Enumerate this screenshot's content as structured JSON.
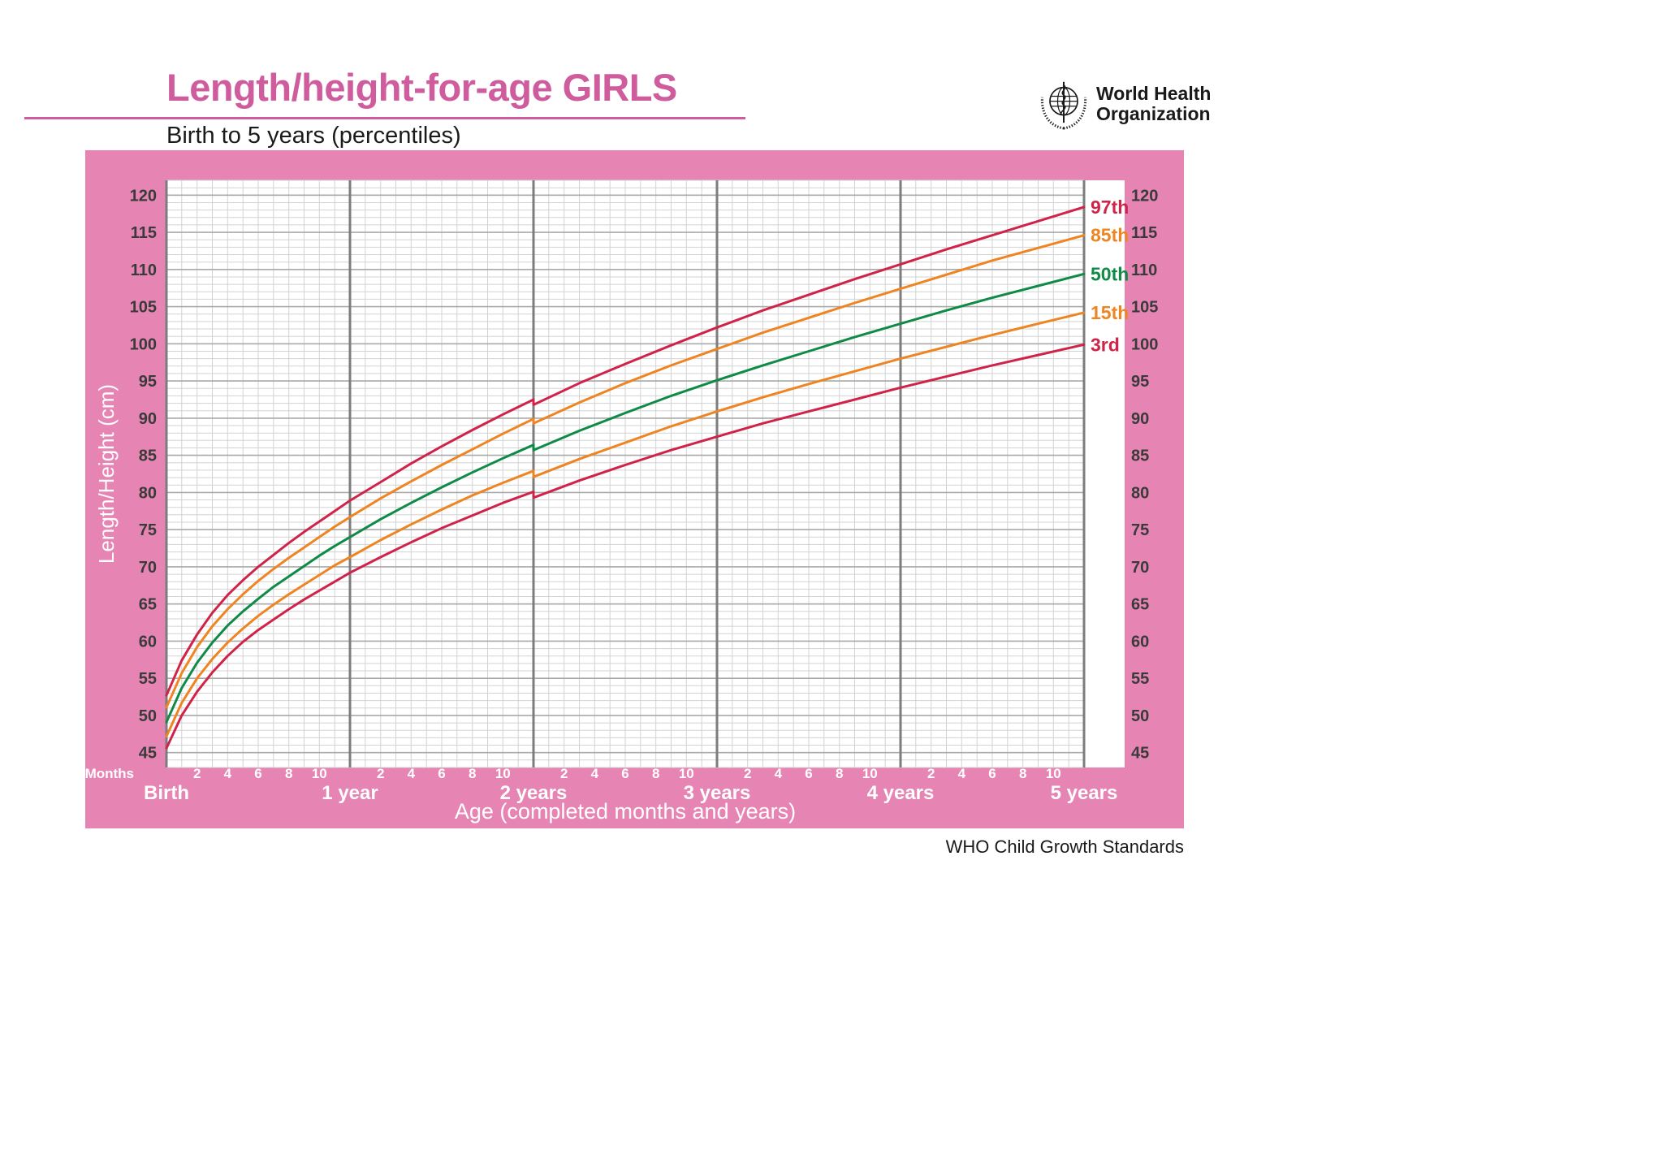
{
  "page": {
    "title": "Length/height-for-age GIRLS",
    "subtitle": "Birth to 5 years (percentiles)",
    "credit": "WHO Child Growth Standards",
    "logo": {
      "line1": "World Health",
      "line2": "Organization"
    }
  },
  "colors": {
    "pink_panel": "#e685b4",
    "title_pink": "#cf5d9e",
    "red": "#d02349",
    "orange": "#ee8522",
    "green": "#0f8a47",
    "grid_minor": "#d3d3d3",
    "grid_major": "#a9a9a9",
    "grid_year": "#7d7d7d",
    "axis_text": "#3a3a3a",
    "white_text": "#ffffff"
  },
  "chart_data": {
    "type": "line",
    "title": "Length/height-for-age GIRLS — Birth to 5 years (percentiles)",
    "xlabel": "Age (completed months and years)",
    "ylabel": "Length/Height (cm)",
    "x_unit_label": "Months",
    "xlim_months": [
      0,
      60
    ],
    "ylim": [
      43,
      122
    ],
    "grid": true,
    "legend_position": "right end of curves",
    "y_ticks": [
      45,
      50,
      55,
      60,
      65,
      70,
      75,
      80,
      85,
      90,
      95,
      100,
      105,
      110,
      115,
      120
    ],
    "x_month_ticks": [
      2,
      4,
      6,
      8,
      10
    ],
    "x_year_ticks": [
      {
        "months": 0,
        "label": "Birth"
      },
      {
        "months": 12,
        "label": "1 year"
      },
      {
        "months": 24,
        "label": "2 years"
      },
      {
        "months": 36,
        "label": "3 years"
      },
      {
        "months": 48,
        "label": "4 years"
      },
      {
        "months": 60,
        "label": "5 years"
      }
    ],
    "months": [
      0,
      1,
      2,
      3,
      4,
      5,
      6,
      7,
      8,
      9,
      10,
      11,
      12,
      14,
      16,
      18,
      20,
      22,
      24,
      24,
      27,
      30,
      33,
      36,
      39,
      42,
      45,
      48,
      51,
      54,
      57,
      60
    ],
    "series": [
      {
        "name": "97th",
        "color_key": "red",
        "values": [
          52.7,
          57.4,
          60.9,
          63.8,
          66.2,
          68.2,
          70.0,
          71.6,
          73.2,
          74.7,
          76.1,
          77.5,
          78.9,
          81.4,
          83.9,
          86.2,
          88.4,
          90.5,
          92.5,
          91.8,
          94.7,
          97.3,
          99.8,
          102.2,
          104.5,
          106.6,
          108.7,
          110.7,
          112.7,
          114.6,
          116.5,
          118.4
        ]
      },
      {
        "name": "85th",
        "color_key": "orange",
        "values": [
          51.1,
          55.7,
          59.2,
          62.0,
          64.3,
          66.3,
          68.1,
          69.7,
          71.2,
          72.6,
          74.0,
          75.4,
          76.7,
          79.2,
          81.5,
          83.7,
          85.8,
          87.9,
          89.9,
          89.3,
          92.1,
          94.7,
          97.1,
          99.3,
          101.5,
          103.5,
          105.5,
          107.4,
          109.3,
          111.2,
          112.9,
          114.6
        ]
      },
      {
        "name": "50th",
        "color_key": "green",
        "values": [
          49.1,
          53.7,
          57.1,
          59.8,
          62.1,
          64.0,
          65.7,
          67.3,
          68.7,
          70.1,
          71.5,
          72.8,
          74.0,
          76.4,
          78.6,
          80.7,
          82.7,
          84.6,
          86.4,
          85.7,
          88.3,
          90.7,
          93.0,
          95.1,
          97.1,
          99.0,
          100.9,
          102.7,
          104.5,
          106.2,
          107.8,
          109.4
        ]
      },
      {
        "name": "15th",
        "color_key": "orange",
        "values": [
          47.2,
          51.7,
          55.0,
          57.6,
          59.8,
          61.7,
          63.4,
          64.9,
          66.3,
          67.6,
          68.9,
          70.2,
          71.3,
          73.6,
          75.7,
          77.7,
          79.6,
          81.3,
          82.9,
          82.1,
          84.5,
          86.7,
          88.9,
          90.9,
          92.8,
          94.6,
          96.3,
          98.0,
          99.6,
          101.2,
          102.7,
          104.2
        ]
      },
      {
        "name": "3rd",
        "color_key": "red",
        "values": [
          45.6,
          50.0,
          53.2,
          55.8,
          58.0,
          59.9,
          61.5,
          62.9,
          64.3,
          65.6,
          66.8,
          68.0,
          69.2,
          71.3,
          73.3,
          75.2,
          76.9,
          78.6,
          80.1,
          79.3,
          81.6,
          83.7,
          85.7,
          87.5,
          89.3,
          90.9,
          92.5,
          94.1,
          95.6,
          97.1,
          98.5,
          99.9
        ]
      }
    ]
  }
}
